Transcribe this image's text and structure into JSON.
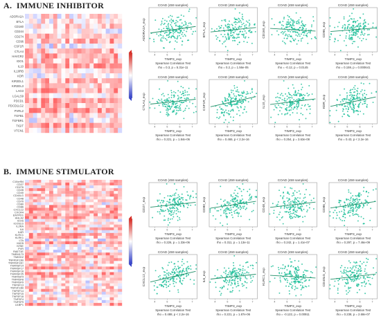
{
  "panels": [
    {
      "label": "A.",
      "title": "IMMUNE INHIBITOR",
      "heatmap": {
        "rows": [
          "ADORA2A",
          "BTLA",
          "CD160",
          "CD244",
          "CD274",
          "CD96",
          "CSF1R",
          "CTLA4",
          "HAVCR2",
          "IDO1",
          "IL10",
          "IL10RB",
          "KDR",
          "KIR2DL1",
          "KIR2DL3",
          "LAG3",
          "LGALS9",
          "PDCD1",
          "PDCD1LG2",
          "PVRL2",
          "TGFB1",
          "TGFBR1",
          "TIGIT",
          "VTCN1"
        ]
      },
      "chart_data": [
        {
          "type": "scatter",
          "title": "COAD (459 samples)",
          "ylabel": "ADORA2A_exp",
          "xlabel": "TIMP3_exp",
          "test": "Spearman Correlation Test",
          "stat": "rho = 0.3, p = 5.31e-11",
          "rho": 0.3
        },
        {
          "type": "scatter",
          "title": "COAD (459 samples)",
          "ylabel": "BTLA_exp",
          "xlabel": "TIMP3_exp",
          "test": "Spearman Correlation Test",
          "stat": "rho = 0.2, p = 1.56e-05",
          "rho": 0.2
        },
        {
          "type": "scatter",
          "title": "COAD (459 samples)",
          "ylabel": "CD160_exp",
          "xlabel": "TIMP3_exp",
          "test": "Spearman Correlation Test",
          "stat": "rho = -0.12, p = 0.0145",
          "rho": -0.12
        },
        {
          "type": "scatter",
          "title": "COAD (459 samples)",
          "ylabel": "CD96_exp",
          "xlabel": "TIMP3_exp",
          "test": "Spearman Correlation Test",
          "stat": "rho = 0.159, p = 0.000641",
          "rho": 0.159
        },
        {
          "type": "scatter",
          "title": "COAD (459 samples)",
          "ylabel": "CTLA4_exp",
          "xlabel": "TIMP3_exp",
          "test": "Spearman Correlation Test",
          "stat": "rho = 0.221, p = 1.84e-06",
          "rho": 0.221
        },
        {
          "type": "scatter",
          "title": "COAD (459 samples)",
          "ylabel": "CSF1R_exp",
          "xlabel": "TIMP3_exp",
          "test": "Spearman Correlation Test",
          "stat": "rho = 0.465, p < 2.2e-16",
          "rho": 0.465
        },
        {
          "type": "scatter",
          "title": "COAD (459 samples)",
          "ylabel": "IL10_exp",
          "xlabel": "TIMP3_exp",
          "test": "Spearman Correlation Test",
          "stat": "rho = 0.254, p = 3.63e-08",
          "rho": 0.254
        },
        {
          "type": "scatter",
          "title": "COAD (459 samples)",
          "ylabel": "KDR_exp",
          "xlabel": "TIMP3_exp",
          "test": "Spearman Correlation Test",
          "stat": "rho = 0.43, p < 2.2e-16",
          "rho": 0.43
        }
      ]
    },
    {
      "label": "B.",
      "title": "IMMUNE STIMULATOR",
      "heatmap": {
        "rows": [
          "C10orf54",
          "CD27",
          "CD276",
          "CD28",
          "CD40",
          "CD40LG",
          "CD48",
          "CD70",
          "CD80",
          "CD86",
          "CXCL12",
          "CXCR4",
          "ENTPD1",
          "HHLA2",
          "ICOS",
          "ICOSLG",
          "IL2RA",
          "IL6",
          "IL6R",
          "KLRC1",
          "KLRK1",
          "LTA",
          "MICB",
          "NT5E",
          "PVR",
          "RAET1E",
          "TMEM173",
          "TMIGD2",
          "TNFRSF13B",
          "TNFRSF13C",
          "TNFRSF14",
          "TNFRSF17",
          "TNFRSF18",
          "TNFRSF25",
          "TNFRSF4",
          "TNFRSF8",
          "TNFRSF9",
          "TNFSF13",
          "TNFSF13B",
          "TNFSF14",
          "TNFSF15",
          "TNFSF18",
          "TNFSF4",
          "TNFSF9",
          "ULBP1"
        ]
      },
      "chart_data": [
        {
          "type": "scatter",
          "title": "COAD (459 samples)",
          "ylabel": "CD27_exp",
          "xlabel": "TIMP3_exp",
          "test": "Spearman Correlation Test",
          "stat": "rho = 0.226, p = 1.33e-06",
          "rho": 0.226
        },
        {
          "type": "scatter",
          "title": "COAD (459 samples)",
          "ylabel": "CD80_exp",
          "xlabel": "TIMP3_exp",
          "test": "Spearman Correlation Test",
          "stat": "rho = 0.311, p = 1.13e-11",
          "rho": 0.311
        },
        {
          "type": "scatter",
          "title": "COAD (459 samples)",
          "ylabel": "CD48_exp",
          "xlabel": "TIMP3_exp",
          "test": "Spearman Correlation Test",
          "stat": "rho = 0.242, p = 1.41e-07",
          "rho": 0.242
        },
        {
          "type": "scatter",
          "title": "COAD (459 samples)",
          "ylabel": "CD86_exp",
          "xlabel": "TIMP3_exp",
          "test": "Spearman Correlation Test",
          "stat": "rho = 0.297, p = 7.46e-09",
          "rho": 0.297
        },
        {
          "type": "scatter",
          "title": "COAD (459 samples)",
          "ylabel": "CXCL12_exp",
          "xlabel": "TIMP3_exp",
          "test": "Spearman Correlation Test",
          "stat": "rho = 0.488, p < 2.2e-16",
          "rho": 0.488
        },
        {
          "type": "scatter",
          "title": "COAD (459 samples)",
          "ylabel": "IL6_exp",
          "xlabel": "TIMP3_exp",
          "test": "Spearman Correlation Test",
          "stat": "rho = 0.221, p = 1.87e-06",
          "rho": 0.221
        },
        {
          "type": "scatter",
          "title": "COAD (459 samples)",
          "ylabel": "KLRC1_exp",
          "xlabel": "TIMP3_exp",
          "test": "Spearman Correlation Test",
          "stat": "rho = -0.122, p = 0.00911",
          "rho": -0.122
        },
        {
          "type": "scatter",
          "title": "COAD (459 samples)",
          "ylabel": "CD40LG_exp",
          "xlabel": "TIMP3_exp",
          "test": "Spearman Correlation Test",
          "stat": "rho = 0.238, p = 2.68e-07",
          "rho": 0.238
        }
      ]
    }
  ],
  "colors": {
    "point": "#1fbf9a",
    "line": "#1e8e66",
    "high": "#d7261e",
    "low": "#2e3cc8"
  }
}
